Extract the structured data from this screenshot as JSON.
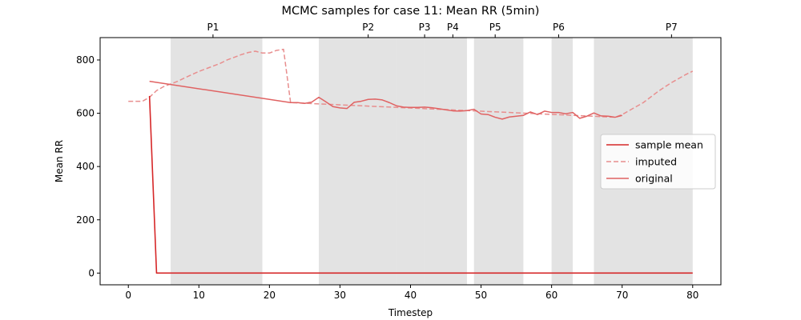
{
  "chart_data": {
    "type": "line",
    "title": "MCMC samples for case 11: Mean RR (5min)",
    "xlabel": "Timestep",
    "ylabel": "Mean RR",
    "xlim": [
      -4,
      84
    ],
    "ylim": [
      -44,
      884
    ],
    "xticks": [
      0,
      10,
      20,
      30,
      40,
      50,
      60,
      70,
      80
    ],
    "yticks": [
      0,
      200,
      400,
      600,
      800
    ],
    "grid": false,
    "legend_position": "center-right",
    "colors": {
      "sample_mean": "#d62728",
      "imputed": "#e88e8e",
      "original": "#e06262",
      "span": "#b0b0b0"
    },
    "top_markers": [
      {
        "label": "P1",
        "x": 12
      },
      {
        "label": "P2",
        "x": 34
      },
      {
        "label": "P3",
        "x": 42
      },
      {
        "label": "P4",
        "x": 46
      },
      {
        "label": "P5",
        "x": 52
      },
      {
        "label": "P6",
        "x": 61
      },
      {
        "label": "P7",
        "x": 77
      }
    ],
    "spans": [
      [
        6,
        19
      ],
      [
        27,
        38
      ],
      [
        38,
        42
      ],
      [
        42,
        45
      ],
      [
        45,
        46
      ],
      [
        46,
        48
      ],
      [
        49,
        56
      ],
      [
        60,
        63
      ],
      [
        66,
        74
      ],
      [
        74,
        80
      ]
    ],
    "series": [
      {
        "name": "sample mean",
        "style": "solid",
        "x": [
          3,
          4,
          5,
          10,
          20,
          30,
          40,
          50,
          60,
          70,
          80
        ],
        "y": [
          665,
          0,
          0,
          0,
          0,
          0,
          0,
          0,
          0,
          0,
          0
        ]
      },
      {
        "name": "imputed",
        "style": "dashed",
        "x": [
          0,
          1,
          2,
          3,
          4,
          5,
          6,
          7,
          8,
          9,
          10,
          11,
          12,
          13,
          14,
          15,
          16,
          17,
          18,
          19,
          20,
          21,
          22,
          23,
          69,
          70,
          71,
          72,
          73,
          74,
          75,
          76,
          77,
          78,
          79,
          80
        ],
        "y": [
          645,
          645,
          645,
          660,
          685,
          700,
          710,
          720,
          733,
          745,
          757,
          767,
          777,
          787,
          800,
          810,
          820,
          828,
          833,
          826,
          826,
          836,
          840,
          640,
          585,
          595,
          610,
          625,
          640,
          660,
          680,
          698,
          715,
          730,
          745,
          758
        ]
      },
      {
        "name": "original",
        "style": "solid",
        "x": [
          3,
          23,
          24,
          25,
          26,
          27,
          28,
          29,
          30,
          31,
          32,
          33,
          34,
          35,
          36,
          37,
          38,
          39,
          40,
          41,
          42,
          43,
          44,
          45,
          46,
          47,
          48,
          49,
          50,
          51,
          52,
          53,
          54,
          55,
          56,
          57,
          58,
          59,
          60,
          61,
          62,
          63,
          64,
          65,
          66,
          67,
          68,
          69,
          70
        ],
        "y": [
          720,
          640,
          640,
          637,
          642,
          660,
          643,
          625,
          620,
          618,
          641,
          645,
          652,
          653,
          650,
          640,
          628,
          623,
          622,
          622,
          623,
          621,
          617,
          613,
          609,
          608,
          610,
          615,
          597,
          595,
          585,
          578,
          586,
          589,
          592,
          605,
          595,
          608,
          603,
          603,
          598,
          603,
          581,
          589,
          601,
          590,
          589,
          585,
          592
        ]
      }
    ]
  }
}
